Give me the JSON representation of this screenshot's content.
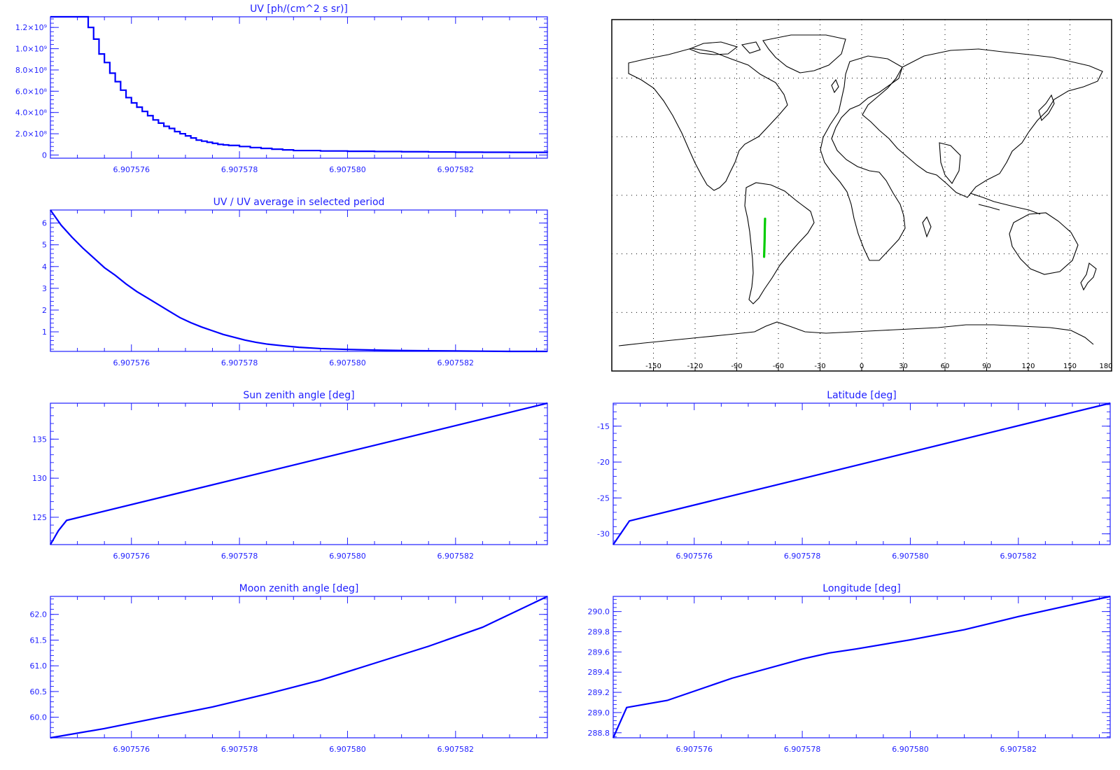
{
  "colors": {
    "axis": "#1f1fff",
    "line": "#0000ff",
    "map_outline": "#000000",
    "map_grid": "#000000",
    "track": "#00cc00"
  },
  "chart_data": [
    {
      "id": "uv",
      "type": "line",
      "step": true,
      "title": "UV [ph/(cm^2 s sr)]",
      "xlim": [
        6.9075745,
        6.9075837
      ],
      "ylim": [
        -30000000,
        1300000000
      ],
      "x_ticks": [
        6.907576,
        6.907578,
        6.90758,
        6.907582
      ],
      "x_tick_labels": [
        "6.907576",
        "6.907578",
        "6.907580",
        "6.907582"
      ],
      "y_ticks": [
        0,
        200000000,
        400000000,
        600000000,
        800000000,
        1000000000,
        1200000000
      ],
      "y_tick_labels": [
        "0",
        "2.0×10⁸",
        "4.0×10⁸",
        "6.0×10⁸",
        "8.0×10⁸",
        "1.0×10⁹",
        "1.2×10⁹"
      ],
      "series": [
        {
          "x": [
            6.9075745,
            6.90757505,
            6.9075752,
            6.9075753,
            6.9075754,
            6.9075755,
            6.9075756,
            6.9075757,
            6.9075758,
            6.9075759,
            6.907576,
            6.9075761,
            6.9075762,
            6.9075763,
            6.9075764,
            6.9075765,
            6.9075766,
            6.9075767,
            6.9075768,
            6.9075769,
            6.907577,
            6.9075771,
            6.9075772,
            6.9075773,
            6.9075774,
            6.9075775,
            6.9075776,
            6.9075777,
            6.9075778,
            6.907578,
            6.9075782,
            6.9075784,
            6.9075786,
            6.9075788,
            6.907579,
            6.9075795,
            6.90758,
            6.9075805,
            6.907581,
            6.9075815,
            6.907582,
            6.9075825,
            6.907583,
            6.9075837
          ],
          "y": [
            1300000000,
            1300000000,
            1200000000,
            1090000000,
            950000000,
            870000000,
            770000000,
            690000000,
            610000000,
            540000000,
            490000000,
            450000000,
            410000000,
            370000000,
            330000000,
            300000000,
            270000000,
            250000000,
            220000000,
            200000000,
            180000000,
            160000000,
            140000000,
            130000000,
            120000000,
            110000000,
            100000000,
            95000000,
            90000000,
            80000000,
            70000000,
            62000000,
            55000000,
            48000000,
            42000000,
            38000000,
            35000000,
            33000000,
            31000000,
            29000000,
            27000000,
            26000000,
            25000000,
            24000000
          ]
        }
      ]
    },
    {
      "id": "uv-ratio",
      "type": "line",
      "title": "UV / UV average in selected period",
      "xlim": [
        6.9075745,
        6.9075837
      ],
      "ylim": [
        0.1,
        6.6
      ],
      "x_ticks": [
        6.907576,
        6.907578,
        6.90758,
        6.907582
      ],
      "x_tick_labels": [
        "6.907576",
        "6.907578",
        "6.907580",
        "6.907582"
      ],
      "y_ticks": [
        1,
        2,
        3,
        4,
        5,
        6
      ],
      "y_tick_labels": [
        "1",
        "2",
        "3",
        "4",
        "5",
        "6"
      ],
      "series": [
        {
          "x": [
            6.9075745,
            6.9075747,
            6.9075749,
            6.9075751,
            6.9075753,
            6.9075755,
            6.9075757,
            6.9075759,
            6.9075761,
            6.9075763,
            6.9075765,
            6.9075767,
            6.9075769,
            6.9075771,
            6.9075773,
            6.9075775,
            6.9075777,
            6.9075779,
            6.9075781,
            6.9075783,
            6.9075785,
            6.9075788,
            6.9075791,
            6.9075795,
            6.90758,
            6.9075805,
            6.907581,
            6.9075815,
            6.907582,
            6.9075825,
            6.907583,
            6.9075837
          ],
          "y": [
            6.6,
            5.9,
            5.35,
            4.85,
            4.4,
            3.95,
            3.6,
            3.2,
            2.85,
            2.55,
            2.25,
            1.95,
            1.65,
            1.42,
            1.22,
            1.05,
            0.88,
            0.75,
            0.62,
            0.52,
            0.44,
            0.36,
            0.29,
            0.23,
            0.19,
            0.16,
            0.14,
            0.13,
            0.12,
            0.11,
            0.1,
            0.1
          ]
        }
      ]
    },
    {
      "id": "sun-zenith",
      "type": "line",
      "title": "Sun zenith angle [deg]",
      "xlim": [
        6.9075745,
        6.9075837
      ],
      "ylim": [
        121.5,
        139.6
      ],
      "x_ticks": [
        6.907576,
        6.907578,
        6.90758,
        6.907582
      ],
      "x_tick_labels": [
        "6.907576",
        "6.907578",
        "6.907580",
        "6.907582"
      ],
      "y_ticks": [
        125,
        130,
        135
      ],
      "y_tick_labels": [
        "125",
        "130",
        "135"
      ],
      "series": [
        {
          "x": [
            6.9075745,
            6.90757465,
            6.9075748,
            6.9075837
          ],
          "y": [
            121.5,
            123.3,
            124.6,
            139.6
          ]
        }
      ]
    },
    {
      "id": "moon-zenith",
      "type": "line",
      "title": "Moon zenith angle [deg]",
      "xlim": [
        6.9075745,
        6.9075837
      ],
      "ylim": [
        59.6,
        62.35
      ],
      "x_ticks": [
        6.907576,
        6.907578,
        6.90758,
        6.907582
      ],
      "x_tick_labels": [
        "6.907576",
        "6.907578",
        "6.907580",
        "6.907582"
      ],
      "y_ticks": [
        60,
        60.5,
        61,
        61.5,
        62
      ],
      "y_tick_labels": [
        "60.0",
        "60.5",
        "61.0",
        "61.5",
        "62.0"
      ],
      "series": [
        {
          "x": [
            6.9075745,
            6.9075755,
            6.9075765,
            6.9075775,
            6.9075785,
            6.9075795,
            6.9075805,
            6.9075815,
            6.9075825,
            6.9075837
          ],
          "y": [
            59.6,
            59.78,
            59.99,
            60.2,
            60.45,
            60.72,
            61.05,
            61.38,
            61.75,
            62.35
          ]
        }
      ]
    },
    {
      "id": "latitude",
      "type": "line",
      "title": "Latitude [deg]",
      "xlim": [
        6.9075745,
        6.9075837
      ],
      "ylim": [
        -31.5,
        -11.8
      ],
      "x_ticks": [
        6.907576,
        6.907578,
        6.90758,
        6.907582
      ],
      "x_tick_labels": [
        "6.907576",
        "6.907578",
        "6.907580",
        "6.907582"
      ],
      "y_ticks": [
        -30,
        -25,
        -20,
        -15
      ],
      "y_tick_labels": [
        "-30",
        "-25",
        "-20",
        "-15"
      ],
      "series": [
        {
          "x": [
            6.9075745,
            6.9075748,
            6.9075837
          ],
          "y": [
            -31.5,
            -28.2,
            -11.8
          ]
        }
      ]
    },
    {
      "id": "longitude",
      "type": "line",
      "title": "Longitude [deg]",
      "xlim": [
        6.9075745,
        6.9075837
      ],
      "ylim": [
        288.75,
        290.15
      ],
      "x_ticks": [
        6.907576,
        6.907578,
        6.90758,
        6.907582
      ],
      "x_tick_labels": [
        "6.907576",
        "6.907578",
        "6.907580",
        "6.907582"
      ],
      "y_ticks": [
        288.8,
        289,
        289.2,
        289.4,
        289.6,
        289.8,
        290
      ],
      "y_tick_labels": [
        "288.8",
        "289.0",
        "289.2",
        "289.4",
        "289.6",
        "289.8",
        "290.0"
      ],
      "series": [
        {
          "x": [
            6.9075745,
            6.90757475,
            6.9075755,
            6.9075767,
            6.907578,
            6.9075785,
            6.907579,
            6.90758,
            6.907581,
            6.907582,
            6.9075837
          ],
          "y": [
            288.75,
            289.05,
            289.12,
            289.34,
            289.53,
            289.59,
            289.63,
            289.72,
            289.82,
            289.95,
            290.15
          ]
        }
      ]
    }
  ],
  "map": {
    "x_tick_labels": [
      "-150",
      "-120",
      "-90",
      "-60",
      "-30",
      "0",
      "30",
      "60",
      "90",
      "120",
      "150",
      "180"
    ],
    "track": {
      "lon": [
        -70.3,
        -70.1,
        -69.9,
        -69.8,
        -69.6
      ],
      "lat": [
        -31.5,
        -27.0,
        -22.0,
        -17.0,
        -12.0
      ]
    }
  }
}
